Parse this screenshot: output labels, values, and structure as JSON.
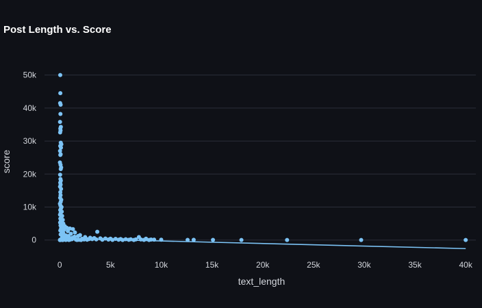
{
  "chart_data": {
    "type": "scatter",
    "title": "Post Length vs. Score",
    "xlabel": "text_length",
    "ylabel": "score",
    "xlim": [
      -1500,
      41000
    ],
    "ylim": [
      -4000,
      52000
    ],
    "x_ticks": [
      0,
      5000,
      10000,
      15000,
      20000,
      25000,
      30000,
      35000,
      40000
    ],
    "x_tick_labels": [
      "0",
      "5k",
      "10k",
      "15k",
      "20k",
      "25k",
      "30k",
      "35k",
      "40k"
    ],
    "y_ticks": [
      0,
      10000,
      20000,
      30000,
      40000,
      50000
    ],
    "y_tick_labels": [
      "0",
      "10k",
      "20k",
      "30k",
      "40k",
      "50k"
    ],
    "grid": true,
    "colors": {
      "points": "#7cc3f5",
      "trendline": "#7cc3f5",
      "grid": "#2b2f3a",
      "background": "#0f1117"
    },
    "trendline": {
      "x": [
        0,
        40000
      ],
      "y": [
        500,
        -2600
      ]
    },
    "points": [
      {
        "x": 50,
        "y": 50000
      },
      {
        "x": 60,
        "y": 44500
      },
      {
        "x": 40,
        "y": 41500
      },
      {
        "x": 90,
        "y": 41000
      },
      {
        "x": 70,
        "y": 38200
      },
      {
        "x": 30,
        "y": 35800
      },
      {
        "x": 110,
        "y": 34300
      },
      {
        "x": 60,
        "y": 33800
      },
      {
        "x": 80,
        "y": 33200
      },
      {
        "x": 40,
        "y": 32600
      },
      {
        "x": 100,
        "y": 29500
      },
      {
        "x": 160,
        "y": 29000
      },
      {
        "x": 50,
        "y": 28500
      },
      {
        "x": 120,
        "y": 28000
      },
      {
        "x": 30,
        "y": 27000
      },
      {
        "x": 90,
        "y": 26000
      },
      {
        "x": 60,
        "y": 25800
      },
      {
        "x": 20,
        "y": 23500
      },
      {
        "x": 80,
        "y": 22800
      },
      {
        "x": 140,
        "y": 22000
      },
      {
        "x": 100,
        "y": 21500
      },
      {
        "x": 40,
        "y": 19800
      },
      {
        "x": 70,
        "y": 18500
      },
      {
        "x": 110,
        "y": 18000
      },
      {
        "x": 50,
        "y": 17400
      },
      {
        "x": 90,
        "y": 16800
      },
      {
        "x": 30,
        "y": 16200
      },
      {
        "x": 130,
        "y": 15500
      },
      {
        "x": 60,
        "y": 14500
      },
      {
        "x": 80,
        "y": 13600
      },
      {
        "x": 40,
        "y": 12800
      },
      {
        "x": 150,
        "y": 12200
      },
      {
        "x": 100,
        "y": 11600
      },
      {
        "x": 20,
        "y": 11000
      },
      {
        "x": 70,
        "y": 10500
      },
      {
        "x": 180,
        "y": 10000
      },
      {
        "x": 120,
        "y": 9600
      },
      {
        "x": 50,
        "y": 9100
      },
      {
        "x": 200,
        "y": 8600
      },
      {
        "x": 90,
        "y": 8200
      },
      {
        "x": 30,
        "y": 7700
      },
      {
        "x": 240,
        "y": 7300
      },
      {
        "x": 140,
        "y": 6900
      },
      {
        "x": 60,
        "y": 6500
      },
      {
        "x": 300,
        "y": 6100
      },
      {
        "x": 110,
        "y": 5700
      },
      {
        "x": 40,
        "y": 5300
      },
      {
        "x": 350,
        "y": 5000
      },
      {
        "x": 170,
        "y": 4700
      },
      {
        "x": 80,
        "y": 4400
      },
      {
        "x": 500,
        "y": 4200
      },
      {
        "x": 260,
        "y": 3900
      },
      {
        "x": 700,
        "y": 3700
      },
      {
        "x": 130,
        "y": 3500
      },
      {
        "x": 1000,
        "y": 3500
      },
      {
        "x": 1300,
        "y": 3300
      },
      {
        "x": 420,
        "y": 3100
      },
      {
        "x": 60,
        "y": 2900
      },
      {
        "x": 800,
        "y": 2700
      },
      {
        "x": 200,
        "y": 2500
      },
      {
        "x": 1500,
        "y": 2300
      },
      {
        "x": 3700,
        "y": 2500
      },
      {
        "x": 350,
        "y": 2100
      },
      {
        "x": 1100,
        "y": 1900
      },
      {
        "x": 90,
        "y": 1700
      },
      {
        "x": 2000,
        "y": 1500
      },
      {
        "x": 600,
        "y": 1400
      },
      {
        "x": 1800,
        "y": 1200
      },
      {
        "x": 250,
        "y": 1100
      },
      {
        "x": 2500,
        "y": 900
      },
      {
        "x": 900,
        "y": 850
      },
      {
        "x": 3000,
        "y": 700
      },
      {
        "x": 1400,
        "y": 650
      },
      {
        "x": 3400,
        "y": 600
      },
      {
        "x": 4000,
        "y": 500
      },
      {
        "x": 500,
        "y": 500
      },
      {
        "x": 4500,
        "y": 450
      },
      {
        "x": 5000,
        "y": 400
      },
      {
        "x": 2200,
        "y": 380
      },
      {
        "x": 5500,
        "y": 350
      },
      {
        "x": 6000,
        "y": 300
      },
      {
        "x": 3200,
        "y": 280
      },
      {
        "x": 6500,
        "y": 250
      },
      {
        "x": 7000,
        "y": 220
      },
      {
        "x": 7500,
        "y": 200
      },
      {
        "x": 7800,
        "y": 900
      },
      {
        "x": 8000,
        "y": 180
      },
      {
        "x": 8500,
        "y": 400
      },
      {
        "x": 9000,
        "y": 150
      },
      {
        "x": 9300,
        "y": 120
      },
      {
        "x": 10000,
        "y": 100
      },
      {
        "x": 12600,
        "y": 50
      },
      {
        "x": 13200,
        "y": 80
      },
      {
        "x": 15100,
        "y": 40
      },
      {
        "x": 17900,
        "y": 30
      },
      {
        "x": 22400,
        "y": 20
      },
      {
        "x": 29700,
        "y": 10
      },
      {
        "x": 40000,
        "y": 10
      },
      {
        "x": 150,
        "y": 300
      },
      {
        "x": 400,
        "y": 200
      },
      {
        "x": 700,
        "y": 150
      },
      {
        "x": 1000,
        "y": 100
      },
      {
        "x": 1200,
        "y": 250
      },
      {
        "x": 1600,
        "y": 120
      },
      {
        "x": 1900,
        "y": 60
      },
      {
        "x": 2400,
        "y": 180
      },
      {
        "x": 2700,
        "y": 90
      },
      {
        "x": 300,
        "y": 0
      },
      {
        "x": 600,
        "y": 20
      },
      {
        "x": 900,
        "y": 10
      },
      {
        "x": 1700,
        "y": 30
      },
      {
        "x": 2100,
        "y": 5
      },
      {
        "x": 50,
        "y": 100
      },
      {
        "x": 100,
        "y": 20
      },
      {
        "x": 20,
        "y": 0
      },
      {
        "x": 250,
        "y": 600
      },
      {
        "x": 450,
        "y": 800
      },
      {
        "x": 650,
        "y": 1000
      },
      {
        "x": 850,
        "y": 1200
      },
      {
        "x": 1250,
        "y": 700
      },
      {
        "x": 1450,
        "y": 1000
      },
      {
        "x": 2600,
        "y": 400
      },
      {
        "x": 2900,
        "y": 300
      },
      {
        "x": 3600,
        "y": 200
      },
      {
        "x": 4200,
        "y": 100
      },
      {
        "x": 4800,
        "y": 150
      },
      {
        "x": 5200,
        "y": 50
      },
      {
        "x": 5800,
        "y": 100
      },
      {
        "x": 6200,
        "y": 30
      },
      {
        "x": 6800,
        "y": 60
      },
      {
        "x": 7300,
        "y": 20
      },
      {
        "x": 8300,
        "y": 40
      },
      {
        "x": 8800,
        "y": 10
      }
    ]
  }
}
